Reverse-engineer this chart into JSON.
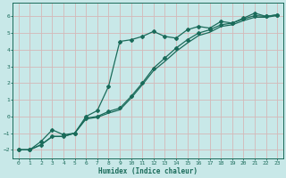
{
  "xlabel": "Humidex (Indice chaleur)",
  "background_color": "#c8e8e8",
  "grid_color": "#d4b8b8",
  "line_color": "#1a6b5a",
  "xlim": [
    -0.5,
    23.5
  ],
  "ylim": [
    -2.5,
    6.8
  ],
  "xticks": [
    0,
    1,
    2,
    3,
    4,
    5,
    6,
    7,
    8,
    9,
    10,
    11,
    12,
    13,
    14,
    15,
    16,
    17,
    18,
    19,
    20,
    21,
    22,
    23
  ],
  "yticks": [
    -2,
    -1,
    0,
    1,
    2,
    3,
    4,
    5,
    6
  ],
  "curve1_x": [
    0,
    1,
    2,
    3,
    4,
    5,
    6,
    7,
    8,
    9,
    10,
    11,
    12,
    13,
    14,
    15,
    16,
    17,
    18,
    19,
    20,
    21,
    22,
    23
  ],
  "curve1_y": [
    -2.0,
    -2.0,
    -1.5,
    -0.8,
    -1.1,
    -1.0,
    0.0,
    0.35,
    1.8,
    4.5,
    4.6,
    4.8,
    5.1,
    4.8,
    4.7,
    5.2,
    5.4,
    5.3,
    5.7,
    5.6,
    5.9,
    6.2,
    6.0,
    6.1
  ],
  "curve2_x": [
    0,
    1,
    2,
    3,
    4,
    5,
    6,
    7,
    8,
    9,
    10,
    11,
    12,
    13,
    14,
    15,
    16,
    17,
    18,
    19,
    20,
    21,
    22,
    23
  ],
  "curve2_y": [
    -2.0,
    -2.0,
    -1.7,
    -1.2,
    -1.2,
    -1.0,
    -0.1,
    0.0,
    0.3,
    0.5,
    1.2,
    2.0,
    2.9,
    3.5,
    4.1,
    4.6,
    5.0,
    5.2,
    5.5,
    5.6,
    5.85,
    6.05,
    6.0,
    6.1
  ],
  "curve3_x": [
    0,
    1,
    2,
    3,
    4,
    5,
    6,
    7,
    8,
    9,
    10,
    11,
    12,
    13,
    14,
    15,
    16,
    17,
    18,
    19,
    20,
    21,
    22,
    23
  ],
  "curve3_y": [
    -2.0,
    -2.0,
    -1.7,
    -1.2,
    -1.2,
    -1.0,
    -0.15,
    -0.05,
    0.2,
    0.4,
    1.1,
    1.9,
    2.75,
    3.3,
    3.9,
    4.4,
    4.85,
    5.05,
    5.4,
    5.5,
    5.75,
    5.95,
    5.95,
    6.05
  ]
}
